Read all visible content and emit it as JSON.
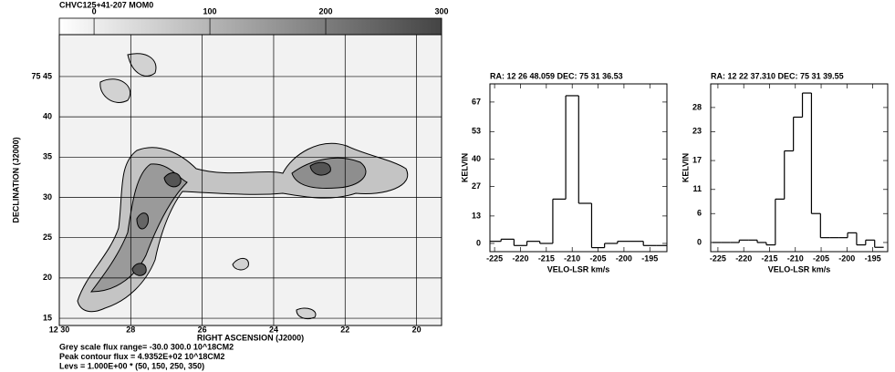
{
  "chart_data": [
    {
      "type": "image",
      "title": "CHVC125+41-207  MOM0",
      "xlabel": "RIGHT ASCENSION (J2000)",
      "ylabel": "DECLINATION (J2000)",
      "xlim": [
        30,
        19.3
      ],
      "xticks": [
        {
          "value": 30,
          "label": "12 30"
        },
        28,
        26,
        24,
        22,
        20
      ],
      "ylim": [
        14.1,
        50.2
      ],
      "yticks": [
        {
          "value": 45,
          "label": "75 45"
        },
        40,
        35,
        30,
        25,
        20,
        15
      ],
      "grid": true,
      "colorbar_lim": [
        -30,
        300
      ],
      "colorbar_ticks": [
        0,
        100,
        200,
        300
      ],
      "annotations": [
        "Grey scale flux range= -30.0 300.0 10^18CM2",
        "Peak contour flux =  4.9352E+02 10^18CM2",
        "Levs = 1.000E+00 * (50, 150, 250, 350)"
      ]
    },
    {
      "type": "step",
      "title": "RA: 12 26 48.059   DEC: 75 31 36.53",
      "xlabel": "VELO-LSR km/s",
      "ylabel": "KELVIN",
      "xlim": [
        -225.9,
        -191.7
      ],
      "xticks": [
        -225,
        -220,
        -215,
        -210,
        -205,
        -200,
        -195
      ],
      "ylim": [
        -3.9,
        75.6
      ],
      "yticks": [
        0,
        13,
        27,
        40,
        53,
        67
      ],
      "x": [
        -225,
        -222.5,
        -220,
        -217.5,
        -215,
        -212.5,
        -210,
        -207.5,
        -205,
        -202.5,
        -200,
        -197.5,
        -195,
        -192.5
      ],
      "values": [
        1,
        2,
        -1,
        1,
        0,
        21,
        70,
        19,
        -2,
        0,
        1,
        1,
        -1,
        -1
      ]
    },
    {
      "type": "step",
      "title": "RA: 12 22 37.310   DEC: 75 31 39.55",
      "xlabel": "VELO-LSR km/s",
      "ylabel": "KELVIN",
      "xlim": [
        -226.4,
        -192.1
      ],
      "xticks": [
        -225,
        -220,
        -215,
        -210,
        -205,
        -200,
        -195
      ],
      "ylim": [
        -1.9,
        32.9
      ],
      "yticks": [
        0,
        6,
        11,
        17,
        23,
        28
      ],
      "x": [
        -225.25,
        -223.5,
        -221.75,
        -220,
        -218.25,
        -216.5,
        -214.75,
        -213,
        -211.25,
        -209.5,
        -207.75,
        -206,
        -204.25,
        -202.5,
        -200.75,
        -199,
        -197.25,
        -195.5,
        -193.75
      ],
      "values": [
        0,
        0,
        0,
        0.5,
        0.5,
        0,
        -0.5,
        9,
        19,
        26,
        31,
        6,
        1,
        1,
        1,
        2,
        -0.5,
        0.5,
        -1
      ]
    }
  ]
}
